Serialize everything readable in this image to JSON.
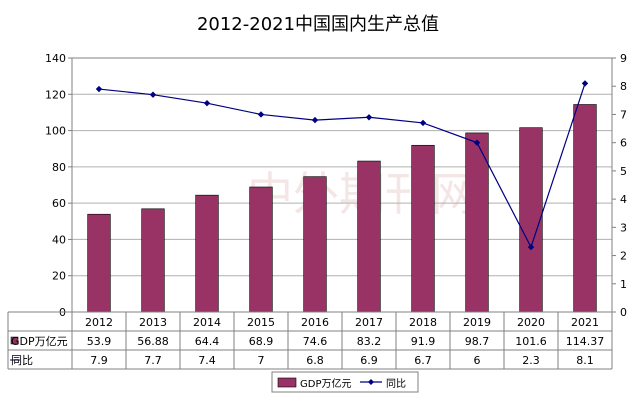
{
  "chart_data": {
    "type": "bar",
    "title": "2012-2021中国国内生产总值",
    "categories": [
      "2012",
      "2013",
      "2014",
      "2015",
      "2016",
      "2017",
      "2018",
      "2019",
      "2020",
      "2021"
    ],
    "series": [
      {
        "name": "GDP万亿元",
        "kind": "bar",
        "axis": "left",
        "color": "#993366",
        "values": [
          53.9,
          56.88,
          64.4,
          68.9,
          74.6,
          83.2,
          91.9,
          98.7,
          101.6,
          114.37
        ],
        "labels": [
          "53.9",
          "56.88",
          "64.4",
          "68.9",
          "74.6",
          "83.2",
          "91.9",
          "98.7",
          "101.6",
          "114.37"
        ]
      },
      {
        "name": "同比",
        "kind": "line",
        "axis": "right",
        "color": "#000080",
        "values": [
          7.9,
          7.7,
          7.4,
          7,
          6.8,
          6.9,
          6.7,
          6,
          2.3,
          8.1
        ],
        "labels": [
          "7.9",
          "7.7",
          "7.4",
          "7",
          "6.8",
          "6.9",
          "6.7",
          "6",
          "2.3",
          "8.1"
        ]
      }
    ],
    "y_left": {
      "min": 0,
      "max": 140,
      "step": 20
    },
    "y_right": {
      "min": 0,
      "max": 9,
      "step": 1
    },
    "grid": true,
    "legend_position": "bottom",
    "data_table": true,
    "watermark": "中外期刊网"
  }
}
